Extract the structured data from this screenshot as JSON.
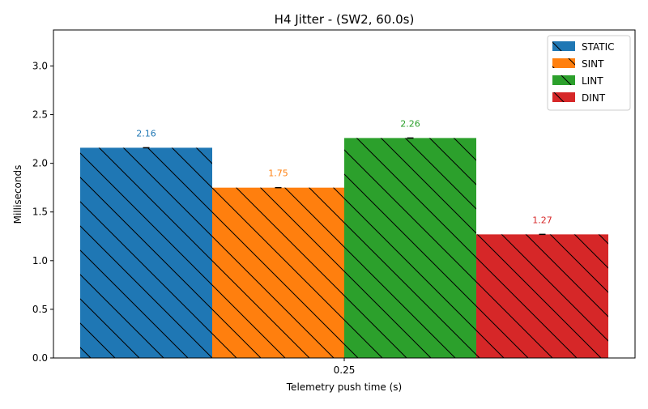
{
  "chart_data": {
    "type": "bar",
    "title": "H4 Jitter - (SW2, 60.0s)",
    "xlabel": "Telemetry push time (s)",
    "ylabel": "Milliseconds",
    "categories": [
      "0.25"
    ],
    "ylim": [
      0,
      3.37
    ],
    "yticks": [
      0.0,
      0.5,
      1.0,
      1.5,
      2.0,
      2.5,
      3.0
    ],
    "ytick_labels": [
      "0.0",
      "0.5",
      "1.0",
      "1.5",
      "2.0",
      "2.5",
      "3.0"
    ],
    "legend_position": "top-right",
    "grid": false,
    "hatch": "backslash",
    "series": [
      {
        "name": "STATIC",
        "values": [
          2.16
        ],
        "label": "2.16",
        "color": "#1f77b4"
      },
      {
        "name": "SINT",
        "values": [
          1.75
        ],
        "label": "1.75",
        "color": "#ff7f0e"
      },
      {
        "name": "LINT",
        "values": [
          2.26
        ],
        "label": "2.26",
        "color": "#2ca02c"
      },
      {
        "name": "DINT",
        "values": [
          1.27
        ],
        "label": "1.27",
        "color": "#d62728"
      }
    ]
  }
}
